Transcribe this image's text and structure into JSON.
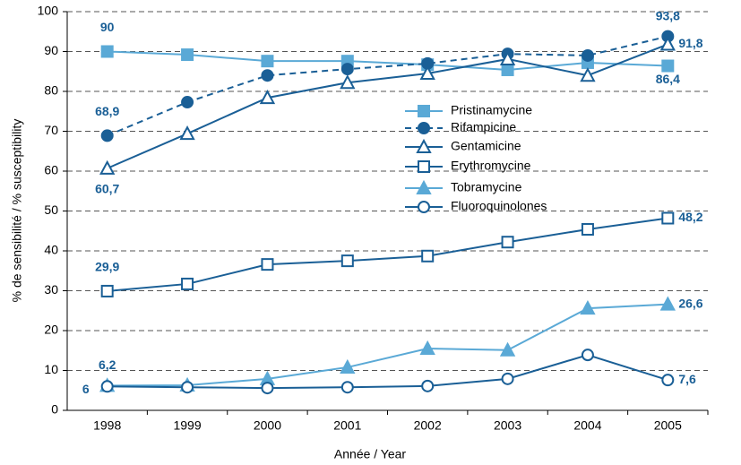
{
  "chart_data": {
    "type": "line",
    "xlabel": "Année / Year",
    "ylabel": "% de sensibilité / % susceptibility",
    "categories": [
      "1998",
      "1999",
      "2000",
      "2001",
      "2002",
      "2003",
      "2004",
      "2005"
    ],
    "ylim": [
      0,
      100
    ],
    "yticks": [
      0,
      10,
      20,
      30,
      40,
      50,
      60,
      70,
      80,
      90,
      100
    ],
    "grid": true,
    "series": [
      {
        "name": "Pristinamycine",
        "color": "#5aa9d6",
        "marker": "square",
        "filled": true,
        "dashed": false,
        "values": [
          90,
          89.2,
          87.6,
          87.6,
          86.7,
          85.4,
          87.2,
          86.4
        ],
        "value_labels": [
          "90",
          null,
          null,
          null,
          null,
          null,
          null,
          "86,4"
        ]
      },
      {
        "name": "Rifampicine",
        "color": "#1a5f96",
        "marker": "circle",
        "filled": true,
        "dashed": true,
        "values": [
          68.9,
          77.3,
          84.0,
          85.6,
          87.0,
          89.4,
          89.0,
          93.8
        ],
        "value_labels": [
          "68,9",
          null,
          null,
          null,
          null,
          null,
          null,
          "93,8"
        ]
      },
      {
        "name": "Gentamicine",
        "color": "#1a5f96",
        "marker": "triangle",
        "filled": false,
        "dashed": false,
        "values": [
          60.7,
          69.4,
          78.4,
          82.2,
          84.5,
          88.1,
          84.0,
          91.8
        ],
        "value_labels": [
          "60,7",
          null,
          null,
          null,
          null,
          null,
          null,
          "91,8"
        ]
      },
      {
        "name": "Erythromycine",
        "color": "#1a5f96",
        "marker": "square",
        "filled": false,
        "dashed": false,
        "values": [
          29.9,
          31.7,
          36.6,
          37.5,
          38.7,
          42.2,
          45.4,
          48.2
        ],
        "value_labels": [
          "29,9",
          null,
          null,
          null,
          null,
          null,
          null,
          "48,2"
        ]
      },
      {
        "name": "Tobramycine",
        "color": "#5aa9d6",
        "marker": "triangle",
        "filled": true,
        "dashed": false,
        "values": [
          6.2,
          6.3,
          7.9,
          10.8,
          15.5,
          15.1,
          25.6,
          26.6
        ],
        "value_labels": [
          "6,2",
          null,
          null,
          null,
          null,
          null,
          null,
          "26,6"
        ]
      },
      {
        "name": "Fluoroquinolones",
        "color": "#1a5f96",
        "marker": "circle",
        "filled": false,
        "dashed": false,
        "values": [
          6,
          5.8,
          5.6,
          5.8,
          6.1,
          7.9,
          13.9,
          7.6
        ],
        "value_labels": [
          "6",
          null,
          null,
          null,
          null,
          null,
          null,
          "7,6"
        ]
      }
    ]
  }
}
